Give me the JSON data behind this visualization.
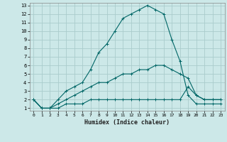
{
  "xlabel": "Humidex (Indice chaleur)",
  "bg_color": "#cce8e8",
  "grid_color": "#aacccc",
  "line_color": "#006666",
  "xlim": [
    -0.5,
    23.5
  ],
  "ylim": [
    0.7,
    13.3
  ],
  "xticks": [
    0,
    1,
    2,
    3,
    4,
    5,
    6,
    7,
    8,
    9,
    10,
    11,
    12,
    13,
    14,
    15,
    16,
    17,
    18,
    19,
    20,
    21,
    22,
    23
  ],
  "yticks": [
    1,
    2,
    3,
    4,
    5,
    6,
    7,
    8,
    9,
    10,
    11,
    12,
    13
  ],
  "line1_x": [
    0,
    1,
    2,
    3,
    4,
    5,
    6,
    7,
    8,
    9,
    10,
    11,
    12,
    13,
    14,
    15,
    16,
    17,
    18,
    19,
    20,
    21,
    22,
    23
  ],
  "line1_y": [
    2,
    1,
    1,
    2,
    3,
    3.5,
    4,
    5.5,
    7.5,
    8.5,
    10,
    11.5,
    12,
    12.5,
    13,
    12.5,
    12,
    9,
    6.5,
    2.5,
    1.5,
    1.5,
    1.5,
    1.5
  ],
  "line2_x": [
    0,
    1,
    2,
    3,
    4,
    5,
    6,
    7,
    8,
    9,
    10,
    11,
    12,
    13,
    14,
    15,
    16,
    17,
    18,
    19,
    20,
    21,
    22,
    23
  ],
  "line2_y": [
    2,
    1,
    1,
    1.5,
    2,
    2.5,
    3,
    3.5,
    4,
    4,
    4.5,
    5,
    5,
    5.5,
    5.5,
    6,
    6,
    5.5,
    5,
    4.5,
    2.5,
    2,
    2,
    2
  ],
  "line3_x": [
    0,
    1,
    2,
    3,
    4,
    5,
    6,
    7,
    8,
    9,
    10,
    11,
    12,
    13,
    14,
    15,
    16,
    17,
    18,
    19,
    20,
    21,
    22,
    23
  ],
  "line3_y": [
    2,
    1,
    1,
    1,
    1.5,
    1.5,
    1.5,
    2,
    2,
    2,
    2,
    2,
    2,
    2,
    2,
    2,
    2,
    2,
    2,
    3.5,
    2.5,
    2,
    2,
    2
  ]
}
